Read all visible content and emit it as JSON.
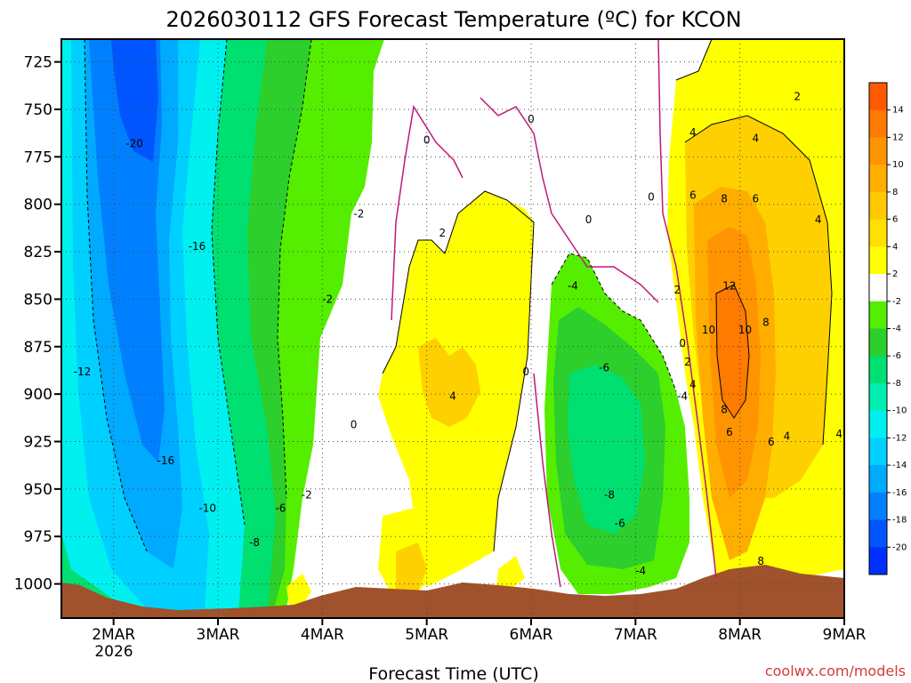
{
  "chart_data": {
    "type": "heatmap",
    "title": "2026030112 GFS Forecast Temperature (ºC) for KCON",
    "xlabel": "Forecast Time (UTC)",
    "ylabel": "",
    "credit": "coolwx.com/models",
    "x_ticks": [
      "2MAR",
      "3MAR",
      "4MAR",
      "5MAR",
      "6MAR",
      "7MAR",
      "8MAR",
      "9MAR"
    ],
    "x_year_label": "2026",
    "y_ticks": [
      725,
      750,
      775,
      800,
      825,
      850,
      875,
      900,
      925,
      950,
      975,
      1000
    ],
    "y_range": [
      713,
      1018
    ],
    "x_range": [
      1.5,
      9.0
    ],
    "colorbar": {
      "labels": [
        14,
        12,
        10,
        8,
        6,
        4,
        2,
        -2,
        -4,
        -6,
        -8,
        -10,
        -12,
        -14,
        -16,
        -18,
        -20
      ],
      "colors": [
        "#ff5a00",
        "#ff7a00",
        "#ff9400",
        "#ffae00",
        "#ffc800",
        "#ffe000",
        "#ffff00",
        "#ffffff",
        "#55ee00",
        "#2ccf2c",
        "#00e070",
        "#00efb0",
        "#00f0f0",
        "#00d0ff",
        "#00aaff",
        "#0080ff",
        "#0055ff",
        "#0030ff"
      ]
    },
    "regions": [
      {
        "name": "cold-core",
        "value": -20,
        "color": "#0055ff"
      },
      {
        "name": "cold-mid",
        "value": -16,
        "color": "#0080ff"
      },
      {
        "name": "cold-outer",
        "value": -12,
        "color": "#00d0ff"
      },
      {
        "name": "cool-band",
        "value": -8,
        "color": "#00efb0"
      },
      {
        "name": "green-band",
        "value": -4,
        "color": "#55ee00"
      },
      {
        "name": "near-zero",
        "value": 0,
        "color": "#ffffff"
      },
      {
        "name": "warm-band",
        "value": 2,
        "color": "#ffff00"
      },
      {
        "name": "warm-core",
        "value": 12,
        "color": "#ff7a00"
      },
      {
        "name": "terrain",
        "value": null,
        "color": "#a0522d"
      }
    ],
    "contour_labels": [
      {
        "text": "-20",
        "x": 2.2,
        "p": 770
      },
      {
        "text": "-16",
        "x": 2.8,
        "p": 824
      },
      {
        "text": "-12",
        "x": 1.7,
        "p": 890
      },
      {
        "text": "-16",
        "x": 2.5,
        "p": 937
      },
      {
        "text": "-10",
        "x": 2.9,
        "p": 962
      },
      {
        "text": "-8",
        "x": 3.35,
        "p": 980
      },
      {
        "text": "-6",
        "x": 3.6,
        "p": 962
      },
      {
        "text": "-2",
        "x": 3.85,
        "p": 955
      },
      {
        "text": "-2",
        "x": 4.35,
        "p": 807
      },
      {
        "text": "-2",
        "x": 4.05,
        "p": 852
      },
      {
        "text": "0",
        "x": 5.0,
        "p": 768
      },
      {
        "text": "0",
        "x": 6.0,
        "p": 757
      },
      {
        "text": "0",
        "x": 7.15,
        "p": 798
      },
      {
        "text": "0",
        "x": 6.55,
        "p": 810
      },
      {
        "text": "0",
        "x": 5.95,
        "p": 890
      },
      {
        "text": "0",
        "x": 4.3,
        "p": 918
      },
      {
        "text": "2",
        "x": 5.15,
        "p": 817
      },
      {
        "text": "4",
        "x": 5.25,
        "p": 903
      },
      {
        "text": "-4",
        "x": 6.4,
        "p": 845
      },
      {
        "text": "-6",
        "x": 6.7,
        "p": 888
      },
      {
        "text": "-8",
        "x": 6.75,
        "p": 955
      },
      {
        "text": "-6",
        "x": 6.85,
        "p": 970
      },
      {
        "text": "-4",
        "x": 7.05,
        "p": 995
      },
      {
        "text": "-4",
        "x": 7.45,
        "p": 903
      },
      {
        "text": "2",
        "x": 7.4,
        "p": 847
      },
      {
        "text": "2",
        "x": 7.5,
        "p": 885
      },
      {
        "text": "0",
        "x": 7.45,
        "p": 875
      },
      {
        "text": "4",
        "x": 7.55,
        "p": 897
      },
      {
        "text": "4",
        "x": 7.55,
        "p": 764
      },
      {
        "text": "4",
        "x": 8.15,
        "p": 767
      },
      {
        "text": "6",
        "x": 7.55,
        "p": 797
      },
      {
        "text": "8",
        "x": 7.85,
        "p": 799
      },
      {
        "text": "6",
        "x": 8.15,
        "p": 799
      },
      {
        "text": "4",
        "x": 8.75,
        "p": 810
      },
      {
        "text": "2",
        "x": 8.55,
        "p": 745
      },
      {
        "text": "12",
        "x": 7.9,
        "p": 845
      },
      {
        "text": "10",
        "x": 7.7,
        "p": 868
      },
      {
        "text": "10",
        "x": 8.05,
        "p": 868
      },
      {
        "text": "8",
        "x": 8.25,
        "p": 864
      },
      {
        "text": "8",
        "x": 7.85,
        "p": 910
      },
      {
        "text": "6",
        "x": 7.9,
        "p": 922
      },
      {
        "text": "6",
        "x": 8.3,
        "p": 927
      },
      {
        "text": "4",
        "x": 8.45,
        "p": 924
      },
      {
        "text": "4",
        "x": 8.95,
        "p": 923
      },
      {
        "text": "8",
        "x": 8.2,
        "p": 990
      }
    ]
  }
}
